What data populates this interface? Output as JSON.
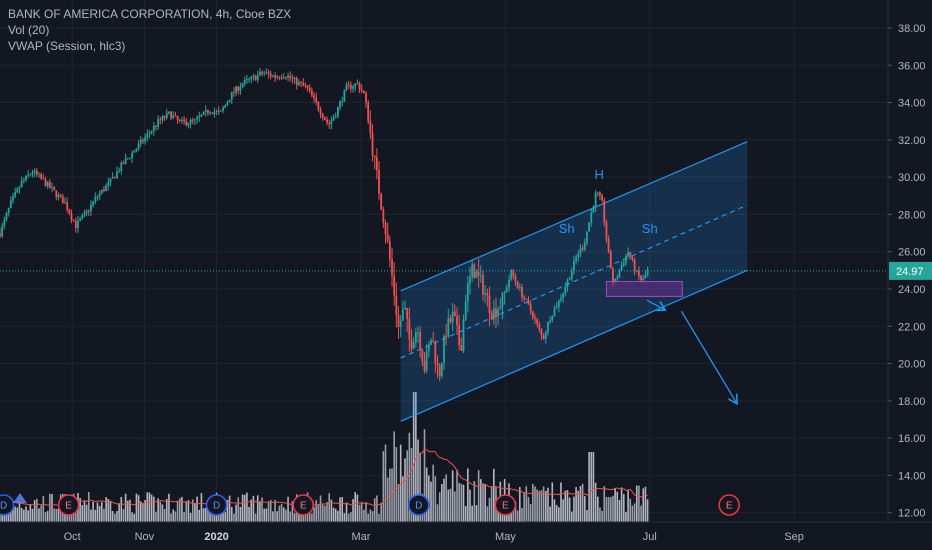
{
  "legend": {
    "symbol_line": "BANK OF AMERICA CORPORATION, 4h, Cboe BZX",
    "vol_line": "Vol (20)",
    "vwap_line": "VWAP (Session, hlc3)"
  },
  "colors": {
    "background": "#131722",
    "up": "#26a69a",
    "down": "#ef5350",
    "channel": "#2196f3",
    "price_label": "#26a69a",
    "volume_ma": "#ef5350"
  },
  "chart_data": {
    "type": "candlestick",
    "symbol": "BANK OF AMERICA CORPORATION",
    "interval": "4h",
    "exchange": "Cboe BZX",
    "current_price": 24.97,
    "current_price_label": "24.97",
    "y_axis": {
      "ticks": [
        "12.00",
        "14.00",
        "16.00",
        "18.00",
        "20.00",
        "22.00",
        "24.00",
        "26.00",
        "28.00",
        "30.00",
        "32.00",
        "34.00",
        "36.00",
        "38.00"
      ],
      "tick_values": [
        12,
        14,
        16,
        18,
        20,
        22,
        24,
        26,
        28,
        30,
        32,
        34,
        36,
        38
      ],
      "range": [
        11.5,
        39.5
      ]
    },
    "x_axis": {
      "labels": [
        {
          "text": "Oct",
          "month": 1,
          "bold": false
        },
        {
          "text": "Nov",
          "month": 2,
          "bold": false
        },
        {
          "text": "2020",
          "month": 3,
          "bold": true
        },
        {
          "text": "Mar",
          "month": 5,
          "bold": false
        },
        {
          "text": "May",
          "month": 7,
          "bold": false
        },
        {
          "text": "Jul",
          "month": 9,
          "bold": false
        },
        {
          "text": "Sep",
          "month": 11,
          "bold": false
        }
      ],
      "month_start": "2019-09",
      "range_months": [
        0,
        12.3
      ]
    },
    "price_path": [
      [
        0.0,
        27.0
      ],
      [
        0.15,
        28.6
      ],
      [
        0.3,
        29.7
      ],
      [
        0.45,
        30.3
      ],
      [
        0.6,
        29.8
      ],
      [
        0.75,
        29.2
      ],
      [
        0.9,
        28.6
      ],
      [
        1.05,
        27.4
      ],
      [
        1.2,
        28.1
      ],
      [
        1.35,
        29.0
      ],
      [
        1.5,
        29.6
      ],
      [
        1.7,
        30.7
      ],
      [
        1.9,
        31.6
      ],
      [
        2.05,
        32.3
      ],
      [
        2.2,
        33.0
      ],
      [
        2.35,
        33.4
      ],
      [
        2.5,
        32.9
      ],
      [
        2.7,
        33.0
      ],
      [
        2.9,
        33.6
      ],
      [
        3.05,
        33.4
      ],
      [
        3.2,
        34.4
      ],
      [
        3.35,
        35.0
      ],
      [
        3.5,
        35.3
      ],
      [
        3.65,
        35.6
      ],
      [
        3.8,
        35.4
      ],
      [
        3.95,
        35.5
      ],
      [
        4.1,
        35.1
      ],
      [
        4.25,
        34.8
      ],
      [
        4.4,
        33.8
      ],
      [
        4.55,
        32.8
      ],
      [
        4.65,
        33.4
      ],
      [
        4.8,
        34.8
      ],
      [
        4.95,
        35.0
      ],
      [
        5.05,
        34.4
      ],
      [
        5.12,
        32.6
      ],
      [
        5.2,
        30.5
      ],
      [
        5.28,
        28.6
      ],
      [
        5.36,
        26.7
      ],
      [
        5.44,
        24.4
      ],
      [
        5.52,
        21.9
      ],
      [
        5.6,
        23.0
      ],
      [
        5.68,
        21.0
      ],
      [
        5.78,
        22.0
      ],
      [
        5.88,
        19.8
      ],
      [
        5.98,
        21.5
      ],
      [
        6.08,
        19.3
      ],
      [
        6.18,
        21.8
      ],
      [
        6.28,
        22.6
      ],
      [
        6.38,
        20.7
      ],
      [
        6.45,
        23.6
      ],
      [
        6.55,
        25.1
      ],
      [
        6.68,
        24.2
      ],
      [
        6.82,
        22.7
      ],
      [
        6.95,
        23.3
      ],
      [
        7.08,
        24.9
      ],
      [
        7.22,
        23.8
      ],
      [
        7.38,
        22.6
      ],
      [
        7.52,
        21.3
      ],
      [
        7.62,
        22.5
      ],
      [
        7.75,
        23.4
      ],
      [
        7.9,
        24.8
      ],
      [
        8.0,
        25.9
      ],
      [
        8.08,
        26.3
      ],
      [
        8.18,
        27.9
      ],
      [
        8.26,
        29.2
      ],
      [
        8.34,
        28.6
      ],
      [
        8.42,
        26.1
      ],
      [
        8.5,
        24.2
      ],
      [
        8.6,
        25.2
      ],
      [
        8.7,
        26.0
      ],
      [
        8.82,
        24.8
      ],
      [
        8.9,
        24.4
      ],
      [
        8.97,
        24.97
      ]
    ],
    "channel": {
      "upper": [
        [
          5.55,
          23.9
        ],
        [
          10.35,
          31.9
        ]
      ],
      "lower": [
        [
          5.55,
          16.9
        ],
        [
          10.35,
          25.0
        ]
      ],
      "midline": [
        [
          5.55,
          20.3
        ],
        [
          10.35,
          28.5
        ]
      ]
    },
    "zone": {
      "x": [
        8.4,
        9.45
      ],
      "y": [
        23.6,
        24.4
      ]
    },
    "arrows": [
      {
        "from": [
          8.96,
          23.4
        ],
        "to": [
          9.2,
          22.9
        ]
      },
      {
        "from": [
          9.44,
          22.8
        ],
        "to": [
          10.2,
          17.9
        ]
      }
    ],
    "annotations": [
      {
        "text": "H",
        "x": 8.3,
        "y": 29.9
      },
      {
        "text": "Sh",
        "x": 7.85,
        "y": 27.0
      },
      {
        "text": "Sh",
        "x": 9.0,
        "y": 27.0
      }
    ],
    "events": [
      {
        "type": "D",
        "x": 0.05,
        "cut": true
      },
      {
        "type": "E",
        "x": 0.95
      },
      {
        "type": "D",
        "x": 3.0
      },
      {
        "type": "E",
        "x": 4.2
      },
      {
        "type": "D",
        "x": 5.8
      },
      {
        "type": "E",
        "x": 7.0
      },
      {
        "type": "E",
        "x": 10.1
      }
    ]
  }
}
